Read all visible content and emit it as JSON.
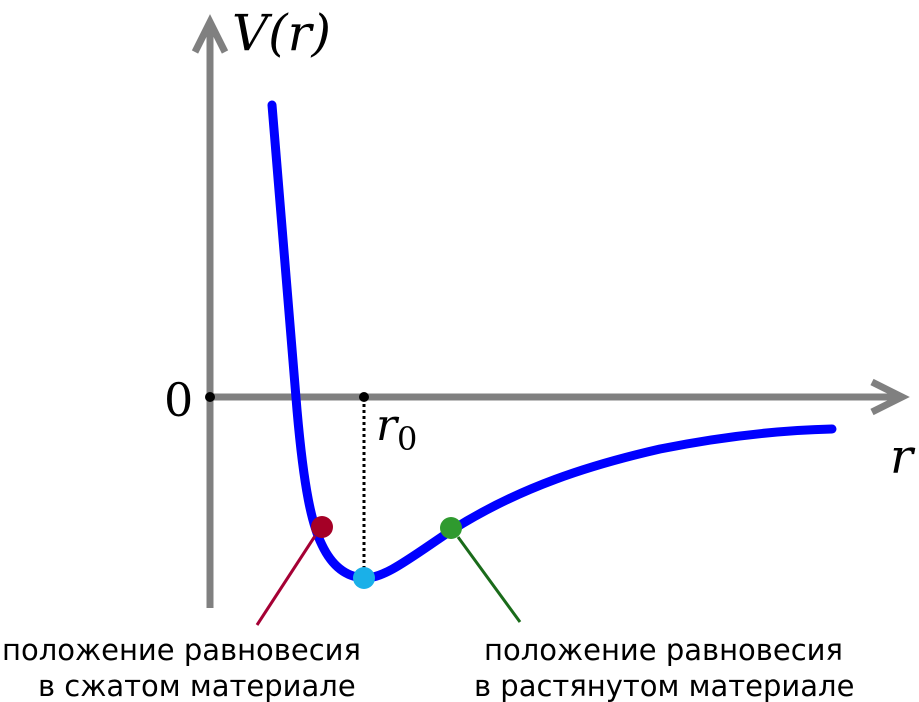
{
  "axes": {
    "y_label_fn": "V",
    "y_label_arg": "(r)",
    "x_label": "r",
    "origin_label": "0",
    "r0_label": "r",
    "r0_subscript": "0"
  },
  "captions": {
    "compressed_line1": "положение равновесия",
    "compressed_line2": "в сжатом материале",
    "stretched_line1": "положение равновесия",
    "stretched_line2": "в растянутом материале"
  },
  "colors": {
    "axis": "#808080",
    "curve": "#0000ff",
    "compressed_point": "#a50026",
    "minimum_point": "#1ab0e8",
    "stretched_point": "#2f9a2f",
    "compressed_leader": "#a50034",
    "stretched_leader": "#1a6b1a"
  }
}
